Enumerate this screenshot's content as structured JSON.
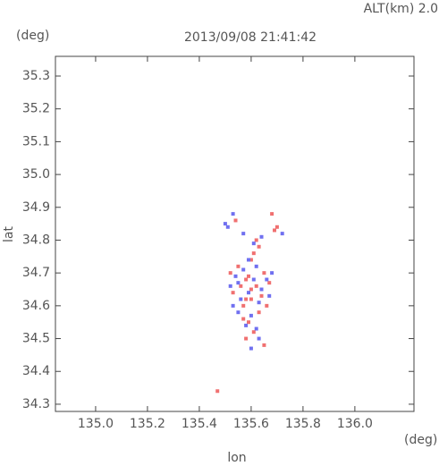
{
  "chart_data": {
    "type": "scatter",
    "header": "ALT(km) 2.0",
    "title": "2013/09/08 21:41:42",
    "y_unit": "(deg)",
    "x_unit": "(deg)",
    "ylabel": "lat",
    "xlabel": "lon",
    "xlim": [
      134.845,
      136.228
    ],
    "ylim": [
      34.278,
      35.36
    ],
    "xticks": [
      {
        "value": 135,
        "label": "135.0"
      },
      135.2,
      135.4,
      135.6,
      135.8,
      {
        "value": 136,
        "label": "136.0"
      }
    ],
    "yticks": [
      34.3,
      34.4,
      34.5,
      34.6,
      34.7,
      34.8,
      34.9,
      {
        "value": 35,
        "label": "35.0"
      },
      35.1,
      35.2,
      35.3
    ],
    "series": [
      {
        "color": "#f07070",
        "x": [
          135.55,
          135.58,
          135.62,
          135.65,
          135.6,
          135.53,
          135.57,
          135.63,
          135.67,
          135.59,
          135.61,
          135.56,
          135.64,
          135.52,
          135.66,
          135.6,
          135.58,
          135.62,
          135.68,
          135.54,
          135.63,
          135.61,
          135.69,
          135.47,
          135.65,
          135.57,
          135.6,
          135.58,
          135.59,
          135.7
        ],
        "y": [
          34.72,
          34.68,
          34.66,
          34.7,
          34.62,
          34.64,
          34.6,
          34.58,
          34.67,
          34.55,
          34.52,
          34.66,
          34.63,
          34.7,
          34.6,
          34.74,
          34.5,
          34.8,
          34.88,
          34.86,
          34.78,
          34.76,
          34.83,
          34.34,
          34.48,
          34.56,
          34.65,
          34.62,
          34.69,
          34.84
        ]
      },
      {
        "color": "#7070f0",
        "x": [
          135.54,
          135.57,
          135.61,
          135.64,
          135.52,
          135.56,
          135.59,
          135.63,
          135.66,
          135.55,
          135.6,
          135.53,
          135.58,
          135.62,
          135.67,
          135.51,
          135.57,
          135.61,
          135.64,
          135.5,
          135.53,
          135.63,
          135.72,
          135.68,
          135.55,
          135.59,
          135.62,
          135.6
        ],
        "y": [
          34.69,
          34.71,
          34.68,
          34.65,
          34.66,
          34.62,
          34.64,
          34.61,
          34.68,
          34.58,
          34.57,
          34.6,
          34.54,
          34.72,
          34.63,
          34.84,
          34.82,
          34.79,
          34.81,
          34.85,
          34.88,
          34.5,
          34.82,
          34.7,
          34.67,
          34.74,
          34.53,
          34.47
        ]
      }
    ]
  }
}
